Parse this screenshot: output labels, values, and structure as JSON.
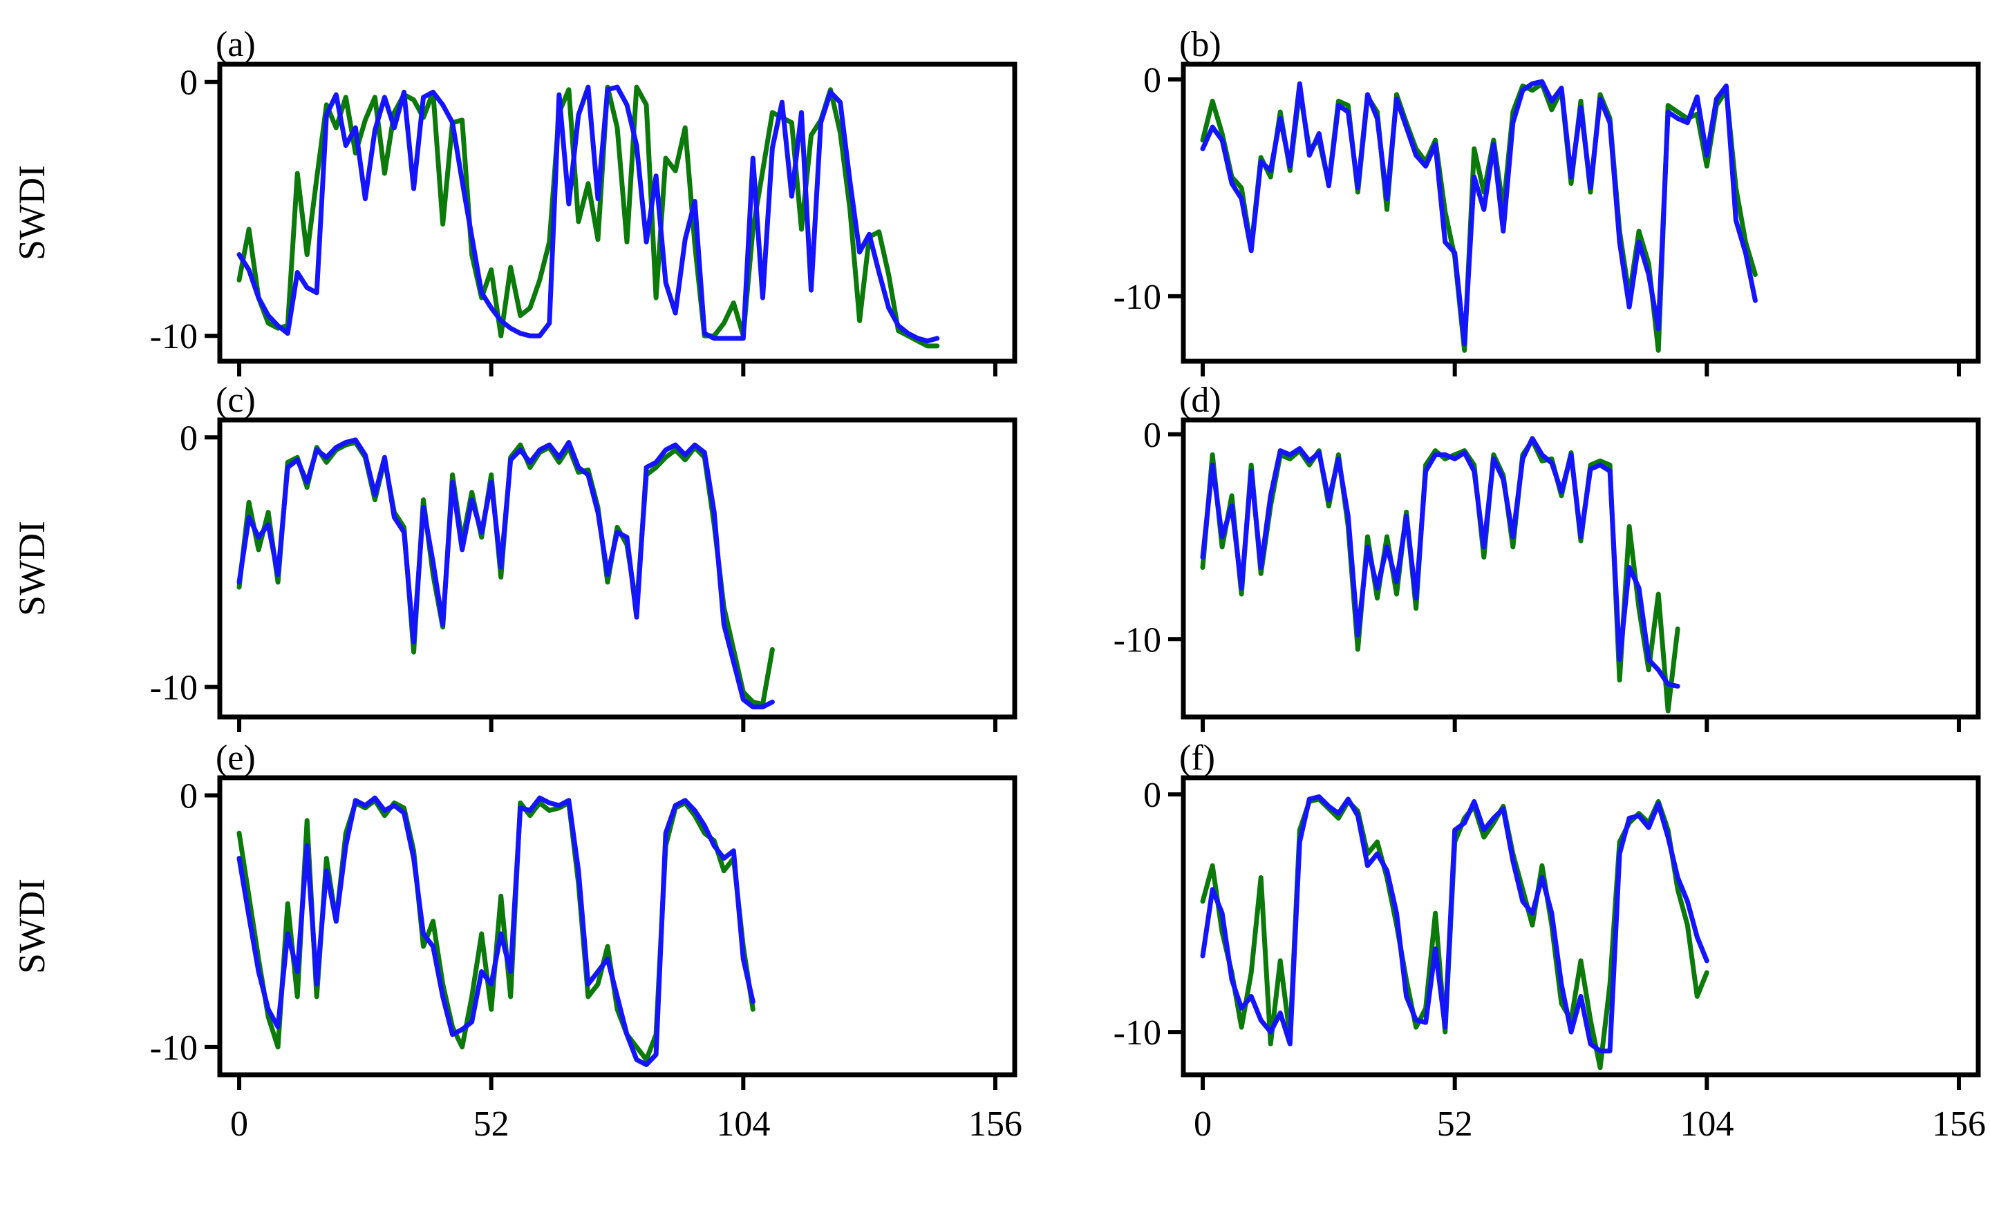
{
  "figure": {
    "colors": {
      "series_green": "#0b7a0b",
      "series_blue": "#1414ff",
      "axis": "#000000",
      "background": "#ffffff"
    }
  },
  "chart_data": [
    {
      "type": "line",
      "panel": "(a)",
      "ylabel": "SWDI",
      "xlabel": "",
      "xlim": [
        -4,
        160
      ],
      "ylim": [
        -11,
        0.7
      ],
      "x_ticks": [
        0,
        52,
        104,
        156
      ],
      "x_tick_labels": [
        "0",
        "52",
        "104",
        "156"
      ],
      "show_x_tick_labels": false,
      "y_ticks": [
        0,
        -10
      ],
      "y_tick_labels": [
        "0",
        "-10"
      ],
      "grid": false,
      "legend": "none",
      "series": [
        {
          "color": "#0b7a0b",
          "x_start": 0,
          "x_step": 2,
          "values": [
            -7.8,
            -5.8,
            -8.5,
            -9.5,
            -9.7,
            -9.6,
            -3.6,
            -6.8,
            -3.8,
            -0.9,
            -1.8,
            -0.6,
            -2.8,
            -1.5,
            -0.6,
            -3.6,
            -1.2,
            -0.5,
            -0.7,
            -1.4,
            -0.4,
            -5.6,
            -1.6,
            -1.5,
            -6.8,
            -8.5,
            -7.4,
            -10,
            -7.3,
            -9.2,
            -8.9,
            -7.8,
            -6.3,
            -1.2,
            -0.3,
            -5.5,
            -4.0,
            -6.2,
            -0.2,
            -1.8,
            -6.3,
            -0.2,
            -0.9,
            -8.5,
            -3.0,
            -3.5,
            -1.8,
            -6.4,
            -10,
            -10,
            -9.5,
            -8.7,
            -10,
            -5.8,
            -3.5,
            -1.2,
            -1.4,
            -1.6,
            -5.8,
            -2.1,
            -1.5,
            -0.3,
            -2.0,
            -5.0,
            -9.4,
            -6.1,
            -5.9,
            -7.6,
            -9.8,
            -10.0,
            -10.2,
            -10.4,
            -10.4
          ]
        },
        {
          "color": "#1414ff",
          "x_start": 0,
          "x_step": 2,
          "values": [
            -6.8,
            -7.4,
            -8.5,
            -9.2,
            -9.6,
            -9.9,
            -7.5,
            -8.1,
            -8.3,
            -1.3,
            -0.5,
            -2.5,
            -1.8,
            -4.6,
            -1.9,
            -0.6,
            -1.8,
            -0.4,
            -4.2,
            -0.6,
            -0.4,
            -0.9,
            -1.6,
            -3.9,
            -6.1,
            -8.3,
            -8.9,
            -9.4,
            -9.7,
            -9.9,
            -10,
            -10,
            -9.5,
            -0.5,
            -4.8,
            -1.3,
            -0.2,
            -4.6,
            -0.3,
            -0.2,
            -0.9,
            -2.5,
            -6.3,
            -3.7,
            -7.9,
            -9.1,
            -6.2,
            -4.7,
            -9.9,
            -10.1,
            -10.1,
            -10.1,
            -10.1,
            -3.0,
            -8.5,
            -2.6,
            -0.8,
            -4.5,
            -1.2,
            -8.2,
            -1.6,
            -0.4,
            -0.8,
            -3.9,
            -6.7,
            -6.0,
            -7.5,
            -8.9,
            -9.6,
            -9.9,
            -10.1,
            -10.2,
            -10.1
          ]
        }
      ]
    },
    {
      "type": "line",
      "panel": "(b)",
      "ylabel": "",
      "xlabel": "",
      "xlim": [
        -4,
        160
      ],
      "ylim": [
        -13,
        0.7
      ],
      "x_ticks": [
        0,
        52,
        104,
        156
      ],
      "x_tick_labels": [
        "0",
        "52",
        "104",
        "156"
      ],
      "show_x_tick_labels": false,
      "y_ticks": [
        0,
        -10
      ],
      "y_tick_labels": [
        "0",
        "-10"
      ],
      "grid": false,
      "legend": "none",
      "series": [
        {
          "color": "#0b7a0b",
          "x_start": 0,
          "x_step": 2,
          "values": [
            -2.8,
            -1.0,
            -2.5,
            -4.5,
            -5.0,
            -7.8,
            -3.6,
            -4.5,
            -1.5,
            -4.2,
            -0.5,
            -3.2,
            -2.8,
            -4.8,
            -1.0,
            -1.2,
            -5.2,
            -0.8,
            -1.5,
            -6.0,
            -0.7,
            -2.0,
            -3.2,
            -3.8,
            -2.8,
            -6.1,
            -8.2,
            -12.5,
            -3.2,
            -5.2,
            -2.8,
            -6.0,
            -1.5,
            -0.3,
            -0.5,
            -0.2,
            -1.4,
            -0.5,
            -4.8,
            -1.0,
            -5.2,
            -0.7,
            -1.8,
            -7.0,
            -10.0,
            -7.0,
            -8.5,
            -12.5,
            -1.2,
            -1.5,
            -1.8,
            -1.6,
            -4.0,
            -1.2,
            -0.5,
            -5.0,
            -7.5,
            -9.0
          ]
        },
        {
          "color": "#1414ff",
          "x_start": 0,
          "x_step": 2,
          "values": [
            -3.2,
            -2.2,
            -2.8,
            -4.8,
            -5.5,
            -7.9,
            -3.8,
            -4.2,
            -1.8,
            -4.0,
            -0.2,
            -3.5,
            -2.5,
            -4.9,
            -1.2,
            -1.5,
            -5.0,
            -0.7,
            -1.8,
            -5.5,
            -0.9,
            -2.2,
            -3.5,
            -4.0,
            -3.0,
            -7.5,
            -8.0,
            -12.2,
            -4.5,
            -6.0,
            -3.0,
            -7.0,
            -2.0,
            -0.5,
            -0.2,
            -0.1,
            -1.0,
            -0.4,
            -4.5,
            -1.3,
            -5.0,
            -0.9,
            -2.0,
            -7.5,
            -10.5,
            -7.5,
            -9.0,
            -11.5,
            -1.5,
            -1.8,
            -2.0,
            -0.8,
            -3.5,
            -0.9,
            -0.3,
            -6.5,
            -8.0,
            -10.2
          ]
        }
      ]
    },
    {
      "type": "line",
      "panel": "(c)",
      "ylabel": "SWDI",
      "xlabel": "",
      "xlim": [
        -4,
        160
      ],
      "ylim": [
        -11.2,
        0.7
      ],
      "x_ticks": [
        0,
        52,
        104,
        156
      ],
      "x_tick_labels": [
        "0",
        "52",
        "104",
        "156"
      ],
      "show_x_tick_labels": false,
      "y_ticks": [
        0,
        -10
      ],
      "y_tick_labels": [
        "0",
        "-10"
      ],
      "grid": false,
      "legend": "none",
      "series": [
        {
          "color": "#0b7a0b",
          "x_start": 0,
          "x_step": 2,
          "values": [
            -6.0,
            -2.6,
            -4.5,
            -3.0,
            -5.8,
            -1.0,
            -0.8,
            -2.0,
            -0.4,
            -1.0,
            -0.5,
            -0.3,
            -0.2,
            -0.8,
            -2.5,
            -0.9,
            -3.0,
            -3.6,
            -8.6,
            -2.5,
            -5.5,
            -7.6,
            -1.5,
            -4.2,
            -2.2,
            -4.0,
            -1.5,
            -5.6,
            -0.8,
            -0.3,
            -1.2,
            -0.6,
            -0.4,
            -1.0,
            -0.4,
            -1.4,
            -1.3,
            -2.8,
            -5.8,
            -3.6,
            -4.3,
            -6.8,
            -1.5,
            -1.2,
            -0.8,
            -0.5,
            -0.9,
            -0.4,
            -0.8,
            -3.5,
            -6.8,
            -8.5,
            -10.2,
            -10.6,
            -10.7,
            -8.5
          ]
        },
        {
          "color": "#1414ff",
          "x_start": 0,
          "x_step": 2,
          "values": [
            -5.8,
            -3.2,
            -4.0,
            -3.5,
            -5.5,
            -1.2,
            -0.9,
            -1.8,
            -0.5,
            -0.8,
            -0.4,
            -0.2,
            -0.1,
            -0.7,
            -2.3,
            -0.8,
            -3.2,
            -3.8,
            -8.2,
            -2.8,
            -5.0,
            -7.5,
            -1.8,
            -4.5,
            -2.5,
            -3.8,
            -1.8,
            -5.2,
            -0.9,
            -0.5,
            -1.0,
            -0.5,
            -0.3,
            -0.8,
            -0.2,
            -1.2,
            -1.5,
            -3.0,
            -5.5,
            -3.8,
            -4.0,
            -7.2,
            -1.2,
            -1.0,
            -0.5,
            -0.3,
            -0.7,
            -0.3,
            -0.6,
            -3.0,
            -7.5,
            -9.0,
            -10.5,
            -10.8,
            -10.8,
            -10.6
          ]
        }
      ]
    },
    {
      "type": "line",
      "panel": "(d)",
      "ylabel": "",
      "xlabel": "",
      "xlim": [
        -4,
        160
      ],
      "ylim": [
        -13.8,
        0.7
      ],
      "x_ticks": [
        0,
        52,
        104,
        156
      ],
      "x_tick_labels": [
        "0",
        "52",
        "104",
        "156"
      ],
      "show_x_tick_labels": false,
      "y_ticks": [
        0,
        -10
      ],
      "y_tick_labels": [
        "0",
        "-10"
      ],
      "grid": false,
      "legend": "none",
      "series": [
        {
          "color": "#0b7a0b",
          "x_start": 0,
          "x_step": 2,
          "values": [
            -6.5,
            -1.0,
            -5.5,
            -3.0,
            -7.8,
            -1.5,
            -6.8,
            -3.5,
            -1.0,
            -1.2,
            -0.8,
            -1.5,
            -0.8,
            -3.5,
            -1.0,
            -4.5,
            -10.5,
            -5.0,
            -8.0,
            -5.0,
            -7.8,
            -3.8,
            -8.5,
            -1.5,
            -0.8,
            -1.2,
            -1.0,
            -0.8,
            -1.5,
            -6.0,
            -1.0,
            -2.0,
            -5.5,
            -1.0,
            -0.3,
            -1.3,
            -1.2,
            -3.0,
            -0.9,
            -5.2,
            -1.5,
            -1.3,
            -1.5,
            -12.0,
            -4.5,
            -8.5,
            -11.5,
            -7.8,
            -13.5,
            -9.5
          ]
        },
        {
          "color": "#1414ff",
          "x_start": 0,
          "x_step": 2,
          "values": [
            -6.0,
            -1.5,
            -5.0,
            -3.5,
            -7.5,
            -1.8,
            -6.5,
            -3.0,
            -0.8,
            -1.0,
            -0.7,
            -1.3,
            -0.9,
            -3.2,
            -1.2,
            -4.0,
            -9.8,
            -5.5,
            -7.5,
            -5.5,
            -7.2,
            -4.0,
            -8.0,
            -1.8,
            -1.0,
            -1.0,
            -1.2,
            -0.9,
            -1.8,
            -5.5,
            -1.2,
            -2.2,
            -5.0,
            -1.2,
            -0.2,
            -1.0,
            -1.4,
            -2.8,
            -1.0,
            -5.0,
            -1.7,
            -1.5,
            -1.8,
            -11.0,
            -6.5,
            -7.5,
            -11.0,
            -11.5,
            -12.2,
            -12.3
          ]
        }
      ]
    },
    {
      "type": "line",
      "panel": "(e)",
      "ylabel": "SWDI",
      "xlabel": "",
      "xlim": [
        -4,
        160
      ],
      "ylim": [
        -11.1,
        0.7
      ],
      "x_ticks": [
        0,
        52,
        104,
        156
      ],
      "x_tick_labels": [
        "0",
        "52",
        "104",
        "156"
      ],
      "show_x_tick_labels": true,
      "y_ticks": [
        0,
        -10
      ],
      "y_tick_labels": [
        "0",
        "-10"
      ],
      "grid": false,
      "legend": "none",
      "series": [
        {
          "color": "#0b7a0b",
          "x_start": 0,
          "x_step": 2,
          "values": [
            -1.5,
            -4.0,
            -6.5,
            -8.8,
            -10.0,
            -4.3,
            -8.0,
            -1.0,
            -8.0,
            -2.5,
            -5.0,
            -1.5,
            -0.3,
            -0.5,
            -0.2,
            -0.8,
            -0.3,
            -0.5,
            -2.2,
            -6.0,
            -5.0,
            -7.5,
            -9.2,
            -10.0,
            -8.0,
            -5.5,
            -8.5,
            -4.0,
            -8.0,
            -0.3,
            -0.8,
            -0.3,
            -0.6,
            -0.5,
            -0.3,
            -3.5,
            -8.0,
            -7.5,
            -6.0,
            -8.5,
            -9.5,
            -10.0,
            -10.5,
            -9.5,
            -2.0,
            -0.5,
            -0.3,
            -0.8,
            -1.5,
            -1.8,
            -3.0,
            -2.5,
            -6.0,
            -8.5
          ]
        },
        {
          "color": "#1414ff",
          "x_start": 0,
          "x_step": 2,
          "values": [
            -2.5,
            -4.8,
            -7.0,
            -8.5,
            -9.2,
            -5.5,
            -7.0,
            -2.0,
            -7.5,
            -3.0,
            -5.0,
            -2.0,
            -0.2,
            -0.4,
            -0.1,
            -0.6,
            -0.4,
            -0.7,
            -2.5,
            -5.5,
            -6.0,
            -8.0,
            -9.5,
            -9.3,
            -9.0,
            -7.0,
            -7.5,
            -5.5,
            -7.0,
            -0.5,
            -0.6,
            -0.1,
            -0.3,
            -0.4,
            -0.2,
            -3.0,
            -7.5,
            -7.0,
            -6.5,
            -8.0,
            -9.5,
            -10.5,
            -10.7,
            -10.3,
            -1.5,
            -0.4,
            -0.2,
            -0.6,
            -1.2,
            -2.0,
            -2.5,
            -2.2,
            -6.5,
            -8.2
          ]
        }
      ]
    },
    {
      "type": "line",
      "panel": "(f)",
      "ylabel": "",
      "xlabel": "",
      "xlim": [
        -4,
        160
      ],
      "ylim": [
        -11.8,
        0.7
      ],
      "x_ticks": [
        0,
        52,
        104,
        156
      ],
      "x_tick_labels": [
        "0",
        "52",
        "104",
        "156"
      ],
      "show_x_tick_labels": true,
      "y_ticks": [
        0,
        -10
      ],
      "y_tick_labels": [
        "0",
        "-10"
      ],
      "grid": false,
      "legend": "none",
      "series": [
        {
          "color": "#0b7a0b",
          "x_start": 0,
          "x_step": 2,
          "values": [
            -4.5,
            -3.0,
            -5.8,
            -7.5,
            -9.8,
            -7.5,
            -3.5,
            -10.5,
            -7.0,
            -10.2,
            -1.5,
            -0.3,
            -0.2,
            -0.6,
            -1.0,
            -0.3,
            -0.7,
            -2.5,
            -2.0,
            -3.5,
            -5.5,
            -7.8,
            -9.8,
            -9.0,
            -5.0,
            -10.0,
            -2.0,
            -1.0,
            -0.5,
            -1.8,
            -1.2,
            -0.5,
            -2.5,
            -4.0,
            -5.5,
            -3.0,
            -5.5,
            -8.8,
            -9.5,
            -7.0,
            -9.5,
            -11.5,
            -8.0,
            -2.0,
            -1.2,
            -0.8,
            -1.2,
            -0.3,
            -1.5,
            -4.0,
            -5.5,
            -8.5,
            -7.5
          ]
        },
        {
          "color": "#1414ff",
          "x_start": 0,
          "x_step": 2,
          "values": [
            -6.8,
            -4.0,
            -5.0,
            -7.8,
            -9.0,
            -8.5,
            -9.5,
            -10.0,
            -9.2,
            -10.5,
            -2.0,
            -0.2,
            -0.1,
            -0.5,
            -0.8,
            -0.2,
            -0.9,
            -3.0,
            -2.5,
            -3.2,
            -5.0,
            -8.5,
            -9.5,
            -9.6,
            -6.5,
            -9.8,
            -1.5,
            -1.2,
            -0.3,
            -1.5,
            -1.0,
            -0.6,
            -2.8,
            -4.5,
            -5.0,
            -3.5,
            -5.0,
            -8.0,
            -10.0,
            -8.5,
            -10.5,
            -10.8,
            -10.8,
            -2.5,
            -1.0,
            -0.9,
            -1.4,
            -0.4,
            -1.8,
            -3.5,
            -4.5,
            -6.0,
            -7.0
          ]
        }
      ]
    }
  ]
}
